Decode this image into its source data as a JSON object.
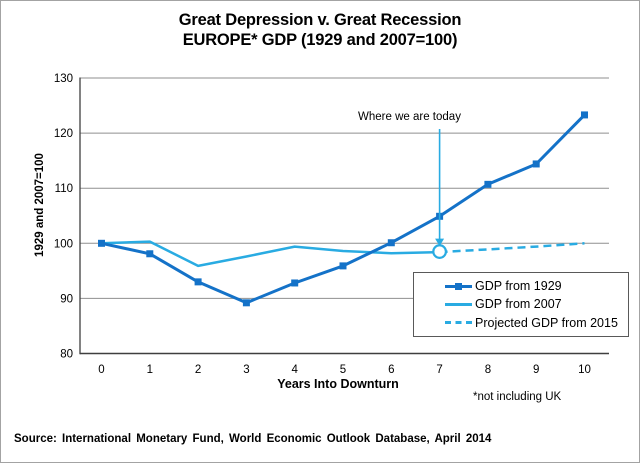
{
  "title": {
    "line1": "Great Depression v. Great Recession",
    "line2": "EUROPE* GDP (1929 and 2007=100)"
  },
  "chart_data": {
    "type": "line",
    "xlabel": "Years Into Downturn",
    "ylabel": "1929 and 2007=100",
    "ylim": [
      80,
      130
    ],
    "y_ticks": [
      80,
      90,
      100,
      110,
      120,
      130
    ],
    "x_ticks": [
      0,
      1,
      2,
      3,
      4,
      5,
      6,
      7,
      8,
      9,
      10
    ],
    "grid": true,
    "legend_position": "inside-bottom-right",
    "series": [
      {
        "name": "GDP from 1929",
        "style": "solid",
        "marker": "square",
        "color": "#1472c8",
        "x": [
          0,
          1,
          2,
          3,
          4,
          5,
          6,
          7,
          8,
          9,
          10
        ],
        "values": [
          100,
          98.1,
          93.0,
          89.2,
          92.8,
          95.9,
          100.1,
          104.9,
          110.7,
          114.4,
          123.3
        ]
      },
      {
        "name": "GDP from 2007",
        "style": "solid",
        "marker": "none",
        "color": "#29abe2",
        "x": [
          0,
          1,
          2,
          3,
          4,
          5,
          6,
          7
        ],
        "values": [
          100,
          100.3,
          95.9,
          97.6,
          99.4,
          98.6,
          98.2,
          98.4
        ]
      },
      {
        "name": "Projected GDP from 2015",
        "style": "dashed",
        "marker": "none",
        "color": "#29abe2",
        "x": [
          7,
          8,
          9,
          10
        ],
        "values": [
          98.4,
          98.9,
          99.4,
          100.0
        ]
      }
    ],
    "annotation": {
      "label": "Where we are today",
      "year": 7,
      "value": 98.5,
      "marker": "open-circle"
    }
  },
  "footnote": "*not including UK",
  "source": "Source: International Monetary Fund, World Economic Outlook Database, April 2014",
  "colors": {
    "gdp1929": "#1472c8",
    "gdp2007": "#29abe2",
    "grid": "#8f8f8f",
    "axis": "#3f3f3f",
    "border": "#a3a3a3"
  }
}
